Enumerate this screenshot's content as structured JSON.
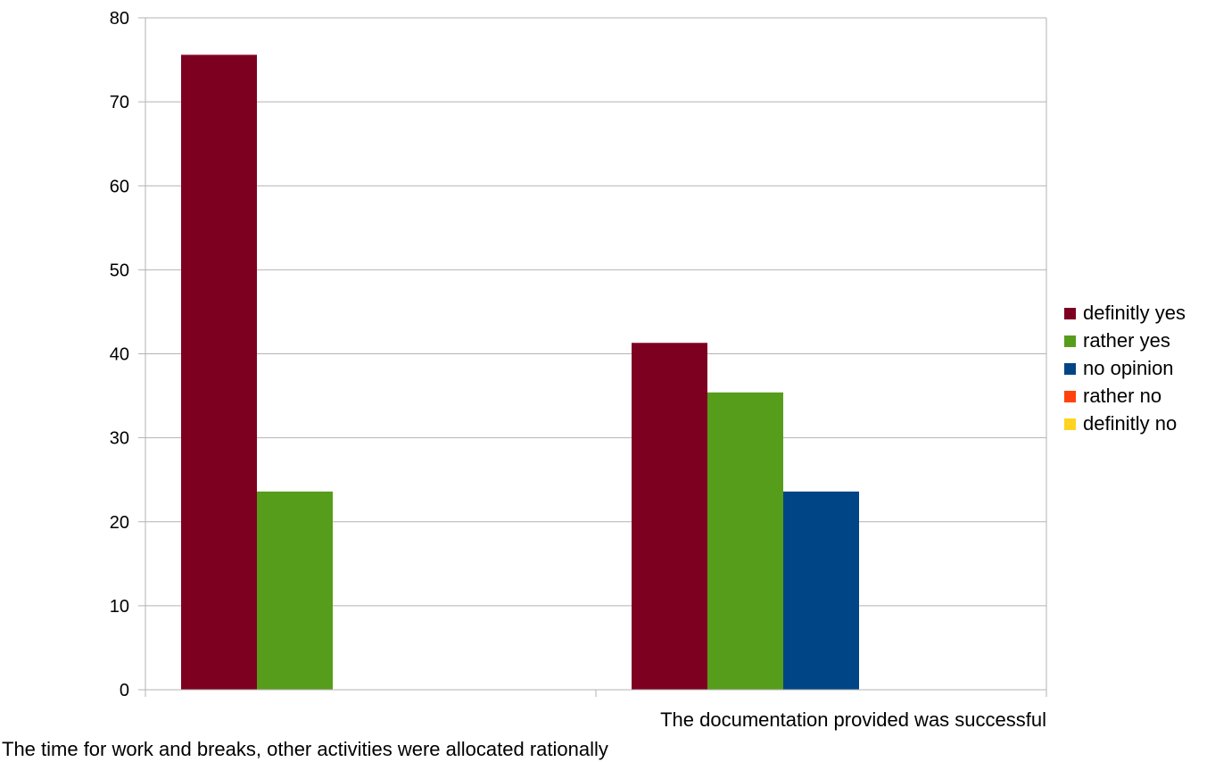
{
  "chart_data": {
    "type": "bar",
    "title": "",
    "xlabel": "",
    "ylabel": "",
    "ylim": [
      0,
      80
    ],
    "yticks": [
      0,
      10,
      20,
      30,
      40,
      50,
      60,
      70,
      80
    ],
    "grid": true,
    "legend_position": "right",
    "categories": [
      "The time for work and breaks, other activities were allocated rationally",
      "The documentation provided was successful"
    ],
    "series": [
      {
        "name": "definitly yes",
        "color": "#7e0021",
        "values": [
          75.6,
          41.3
        ]
      },
      {
        "name": "rather yes",
        "color": "#579d1c",
        "values": [
          23.6,
          35.4
        ]
      },
      {
        "name": "no opinion",
        "color": "#004586",
        "values": [
          0,
          23.6
        ]
      },
      {
        "name": "rather no",
        "color": "#ff420e",
        "values": [
          0,
          0
        ]
      },
      {
        "name": "definitly no",
        "color": "#ffd320",
        "values": [
          0,
          0
        ]
      }
    ]
  }
}
